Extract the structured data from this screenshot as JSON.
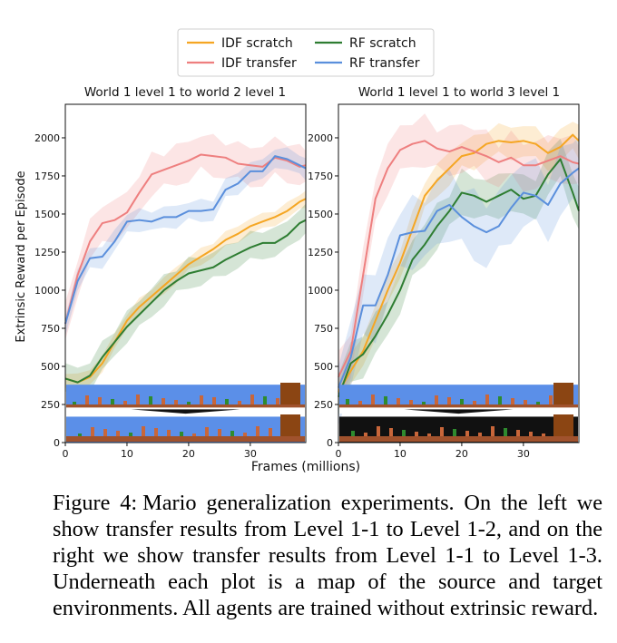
{
  "figure": {
    "x_axis_label": "Frames (millions)",
    "y_axis_label": "Extrinsic Reward per Episode"
  },
  "legend": {
    "entries": [
      {
        "name": "IDF scratch",
        "color": "#f5a623"
      },
      {
        "name": "RF scratch",
        "color": "#2e7d32"
      },
      {
        "name": "IDF transfer",
        "color": "#ee7f7f"
      },
      {
        "name": "RF transfer",
        "color": "#5a8fdc"
      }
    ]
  },
  "caption": {
    "label": "Figure 4:",
    "text": "Mario generalization experiments. On the left we show transfer results from Level 1-1 to Level 1-2, and on the right we show transfer results from Level 1-1 to Level 1-3. Underneath each plot is a map of the source and target environments. All agents are trained without extrinsic reward."
  },
  "chart_data": [
    {
      "type": "line",
      "title": "World 1 level 1 to world 2 level 1",
      "xlabel": "Frames (millions)",
      "ylabel": "Extrinsic Reward per Episode",
      "xlim": [
        0,
        39
      ],
      "ylim": [
        0,
        2220
      ],
      "xticks": [
        0,
        10,
        20,
        30
      ],
      "yticks": [
        0,
        250,
        500,
        750,
        1000,
        1250,
        1500,
        1750,
        2000
      ],
      "grid": false,
      "legend": "above",
      "x": [
        0,
        2,
        4,
        6,
        8,
        10,
        12,
        14,
        16,
        18,
        20,
        22,
        24,
        26,
        28,
        30,
        32,
        34,
        36,
        38,
        39
      ],
      "series": [
        {
          "name": "IDF scratch",
          "color": "#f5a623",
          "values": [
            420,
            395,
            430,
            520,
            660,
            800,
            890,
            960,
            1030,
            1100,
            1170,
            1220,
            1270,
            1330,
            1370,
            1420,
            1450,
            1480,
            1520,
            1580,
            1600
          ]
        },
        {
          "name": "RF scratch",
          "color": "#2e7d32",
          "values": [
            420,
            395,
            440,
            560,
            660,
            760,
            840,
            920,
            1000,
            1060,
            1110,
            1130,
            1150,
            1200,
            1240,
            1280,
            1310,
            1310,
            1360,
            1440,
            1460
          ]
        },
        {
          "name": "IDF transfer",
          "color": "#ee7f7f",
          "values": [
            780,
            1100,
            1320,
            1440,
            1460,
            1510,
            1640,
            1760,
            1790,
            1820,
            1850,
            1890,
            1880,
            1870,
            1830,
            1820,
            1810,
            1870,
            1850,
            1810,
            1820
          ]
        },
        {
          "name": "RF transfer",
          "color": "#5a8fdc",
          "values": [
            780,
            1060,
            1210,
            1220,
            1320,
            1450,
            1460,
            1450,
            1480,
            1480,
            1520,
            1520,
            1530,
            1660,
            1700,
            1780,
            1780,
            1880,
            1860,
            1820,
            1800
          ]
        }
      ]
    },
    {
      "type": "line",
      "title": "World 1 level 1 to world 3 level 1",
      "xlabel": "Frames (millions)",
      "ylabel": "",
      "xlim": [
        0,
        39
      ],
      "ylim": [
        0,
        2220
      ],
      "xticks": [
        0,
        10,
        20,
        30
      ],
      "yticks": [
        0,
        250,
        500,
        750,
        1000,
        1250,
        1500,
        1750,
        2000
      ],
      "grid": false,
      "x": [
        0,
        2,
        4,
        6,
        8,
        10,
        12,
        14,
        16,
        18,
        20,
        22,
        24,
        26,
        28,
        30,
        32,
        34,
        36,
        38,
        39
      ],
      "series": [
        {
          "name": "IDF scratch",
          "color": "#f5a623",
          "values": [
            330,
            470,
            600,
            800,
            1000,
            1180,
            1400,
            1620,
            1720,
            1800,
            1880,
            1900,
            1960,
            1980,
            1970,
            1980,
            1960,
            1900,
            1940,
            2020,
            1980
          ]
        },
        {
          "name": "RF scratch",
          "color": "#2e7d32",
          "values": [
            300,
            520,
            580,
            700,
            840,
            1000,
            1200,
            1300,
            1420,
            1520,
            1640,
            1620,
            1580,
            1620,
            1660,
            1600,
            1620,
            1760,
            1860,
            1640,
            1520
          ]
        },
        {
          "name": "IDF transfer",
          "color": "#ee7f7f",
          "values": [
            430,
            600,
            1100,
            1600,
            1800,
            1920,
            1960,
            1980,
            1930,
            1910,
            1940,
            1910,
            1880,
            1840,
            1870,
            1820,
            1820,
            1850,
            1880,
            1840,
            1830
          ]
        },
        {
          "name": "RF transfer",
          "color": "#5a8fdc",
          "values": [
            360,
            560,
            900,
            900,
            1100,
            1360,
            1380,
            1390,
            1520,
            1560,
            1480,
            1420,
            1380,
            1420,
            1540,
            1640,
            1620,
            1560,
            1700,
            1770,
            1800
          ]
        }
      ]
    }
  ]
}
